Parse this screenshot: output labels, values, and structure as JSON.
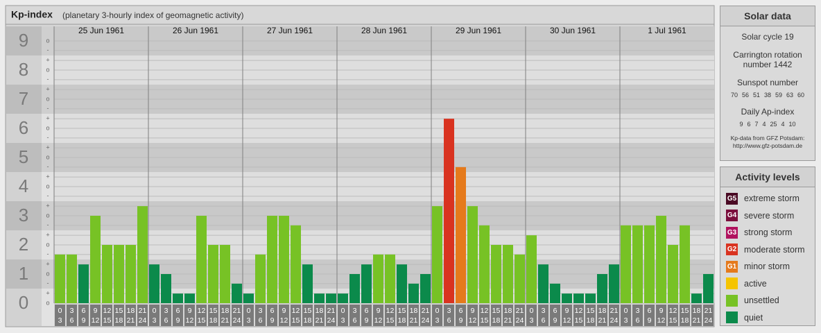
{
  "chart_data": {
    "type": "bar",
    "title": "Kp-index",
    "subtitle": "(planetary 3-hourly index of geomagnetic activity)",
    "ylim": [
      0,
      9.5
    ],
    "yticks": [
      0,
      1,
      2,
      3,
      4,
      5,
      6,
      7,
      8,
      9
    ],
    "minor_yticks": [
      {
        "value": 9,
        "label": "o"
      },
      {
        "value": 8.67,
        "label": "-"
      },
      {
        "value": 8.33,
        "label": "+"
      },
      {
        "value": 8,
        "label": "o"
      },
      {
        "value": 7.67,
        "label": "-"
      },
      {
        "value": 7.33,
        "label": "+"
      },
      {
        "value": 7,
        "label": "o"
      },
      {
        "value": 6.67,
        "label": "-"
      },
      {
        "value": 6.33,
        "label": "+"
      },
      {
        "value": 6,
        "label": "o"
      },
      {
        "value": 5.67,
        "label": "-"
      },
      {
        "value": 5.33,
        "label": "+"
      },
      {
        "value": 5,
        "label": "o"
      },
      {
        "value": 4.67,
        "label": "-"
      },
      {
        "value": 4.33,
        "label": "+"
      },
      {
        "value": 4,
        "label": "o"
      },
      {
        "value": 3.67,
        "label": "-"
      },
      {
        "value": 3.33,
        "label": "+"
      },
      {
        "value": 3,
        "label": "o"
      },
      {
        "value": 2.67,
        "label": "-"
      },
      {
        "value": 2.33,
        "label": "+"
      },
      {
        "value": 2,
        "label": "o"
      },
      {
        "value": 1.67,
        "label": "-"
      },
      {
        "value": 1.33,
        "label": "+"
      },
      {
        "value": 1,
        "label": "o"
      },
      {
        "value": 0.67,
        "label": "-"
      },
      {
        "value": 0.33,
        "label": "+"
      },
      {
        "value": 0,
        "label": "o"
      }
    ],
    "grid": true,
    "time_slots": [
      [
        "0",
        "3"
      ],
      [
        "3",
        "6"
      ],
      [
        "6",
        "9"
      ],
      [
        "9",
        "12"
      ],
      [
        "12",
        "15"
      ],
      [
        "15",
        "18"
      ],
      [
        "18",
        "21"
      ],
      [
        "21",
        "24"
      ]
    ],
    "days": [
      {
        "date": "25 Jun 1961",
        "values": [
          1.67,
          1.67,
          1.33,
          3,
          2,
          2,
          2,
          3.33
        ],
        "colors": [
          "#77c225",
          "#77c225",
          "#0b8a4b",
          "#77c225",
          "#77c225",
          "#77c225",
          "#77c225",
          "#77c225"
        ]
      },
      {
        "date": "26 Jun 1961",
        "values": [
          1.33,
          1,
          0.33,
          0.33,
          3,
          2,
          2,
          0.67
        ],
        "colors": [
          "#0b8a4b",
          "#0b8a4b",
          "#0b8a4b",
          "#0b8a4b",
          "#77c225",
          "#77c225",
          "#77c225",
          "#0b8a4b"
        ]
      },
      {
        "date": "27 Jun 1961",
        "values": [
          0.33,
          1.67,
          3,
          3,
          2.67,
          1.33,
          0.33,
          0.33
        ],
        "colors": [
          "#0b8a4b",
          "#77c225",
          "#77c225",
          "#77c225",
          "#77c225",
          "#0b8a4b",
          "#0b8a4b",
          "#0b8a4b"
        ]
      },
      {
        "date": "28 Jun 1961",
        "values": [
          0.33,
          1,
          1.33,
          1.67,
          1.67,
          1.33,
          0.67,
          1
        ],
        "colors": [
          "#0b8a4b",
          "#0b8a4b",
          "#0b8a4b",
          "#77c225",
          "#77c225",
          "#0b8a4b",
          "#0b8a4b",
          "#0b8a4b"
        ]
      },
      {
        "date": "29 Jun 1961",
        "values": [
          3.33,
          6.33,
          4.67,
          3.33,
          2.67,
          2,
          2,
          1.67
        ],
        "colors": [
          "#77c225",
          "#d93320",
          "#e57a1c",
          "#77c225",
          "#77c225",
          "#77c225",
          "#77c225",
          "#77c225"
        ]
      },
      {
        "date": "30 Jun 1961",
        "values": [
          2.33,
          1.33,
          0.67,
          0.33,
          0.33,
          0.33,
          1,
          1.33
        ],
        "colors": [
          "#77c225",
          "#0b8a4b",
          "#0b8a4b",
          "#0b8a4b",
          "#0b8a4b",
          "#0b8a4b",
          "#0b8a4b",
          "#0b8a4b"
        ]
      },
      {
        "date": "1 Jul 1961",
        "values": [
          2.67,
          2.67,
          2.67,
          3,
          2,
          2.67,
          0.33,
          1
        ],
        "colors": [
          "#77c225",
          "#77c225",
          "#77c225",
          "#77c225",
          "#77c225",
          "#77c225",
          "#0b8a4b",
          "#0b8a4b"
        ]
      }
    ]
  },
  "solar_data": {
    "title": "Solar data",
    "solar_cycle": "Solar cycle 19",
    "carrington": "Carrington rotation number 1442",
    "sunspot_title": "Sunspot number",
    "sunspot_numbers": [
      70,
      56,
      51,
      38,
      59,
      63,
      60
    ],
    "ap_title": "Daily Ap-index",
    "ap_values": [
      9,
      6,
      7,
      4,
      25,
      4,
      10
    ],
    "source": "Kp-data from GFZ Potsdam:",
    "source_url": "http://www.gfz-potsdam.de"
  },
  "activity_levels": {
    "title": "Activity levels",
    "levels": [
      {
        "badge": "G5",
        "label": "extreme storm",
        "color": "#4a0a24"
      },
      {
        "badge": "G4",
        "label": "severe storm",
        "color": "#7a0e3c"
      },
      {
        "badge": "G3",
        "label": "strong storm",
        "color": "#b0125e"
      },
      {
        "badge": "G2",
        "label": "moderate storm",
        "color": "#d93320"
      },
      {
        "badge": "G1",
        "label": "minor storm",
        "color": "#e57a1c"
      },
      {
        "label": "active",
        "color": "#f5c400"
      },
      {
        "label": "unsettled",
        "color": "#77c225"
      },
      {
        "label": "quiet",
        "color": "#0b8a4b"
      }
    ]
  }
}
